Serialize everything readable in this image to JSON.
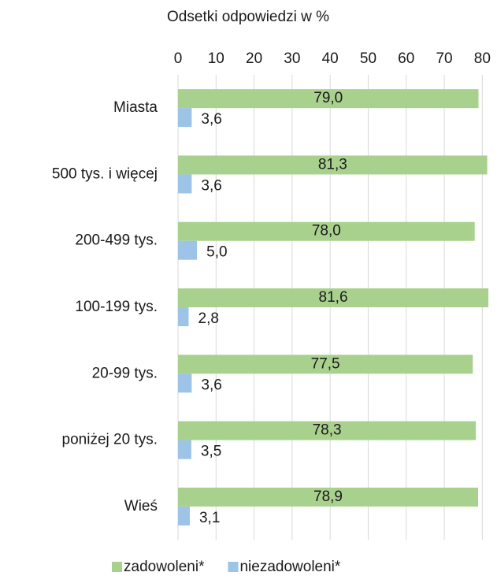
{
  "chart_data": {
    "type": "bar",
    "orientation": "horizontal",
    "x_label": "Odsetki odpowiedzi w %",
    "categories": [
      "Miasta",
      "500 tys. i więcej",
      "200-499 tys.",
      "100-199 tys.",
      "20-99 tys.",
      "poniżej 20 tys.",
      "Wieś"
    ],
    "series": [
      {
        "name": "zadowoleni*",
        "color": "#a9d18e",
        "values": [
          79.0,
          81.3,
          78.0,
          81.6,
          77.5,
          78.3,
          78.9
        ],
        "value_labels": [
          "79,0",
          "81,3",
          "78,0",
          "81,6",
          "77,5",
          "78,3",
          "78,9"
        ]
      },
      {
        "name": "niezadowoleni*",
        "color": "#9dc3e6",
        "values": [
          3.6,
          3.6,
          5.0,
          2.8,
          3.6,
          3.5,
          3.1
        ],
        "value_labels": [
          "3,6",
          "3,6",
          "5,0",
          "2,8",
          "3,6",
          "3,5",
          "3,1"
        ]
      }
    ],
    "xlim": [
      0,
      82
    ],
    "xticks": [
      0,
      10,
      20,
      30,
      40,
      50,
      60,
      70,
      80
    ],
    "grid": true,
    "legend": "bottom"
  }
}
